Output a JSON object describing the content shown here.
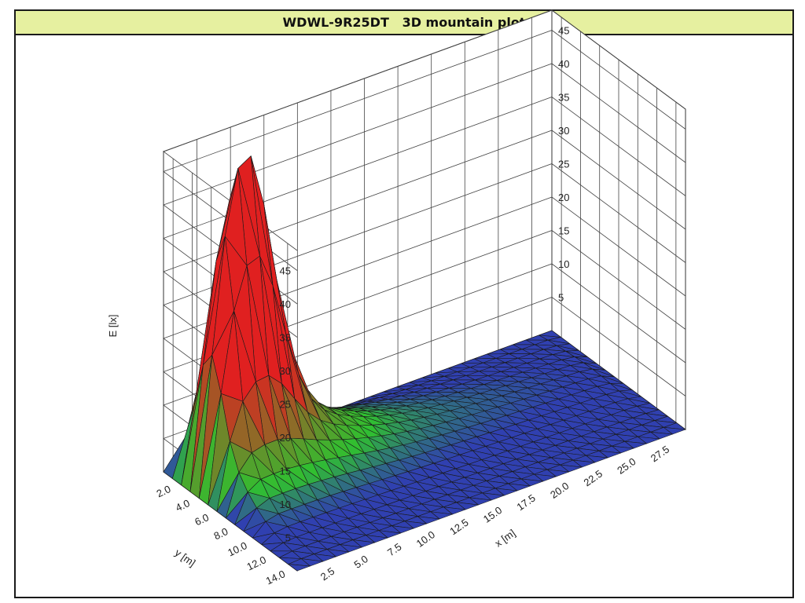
{
  "window": {
    "title": "WDWL-9R25DT   3D mountain plot",
    "title_bar_color": "#e6f0a0"
  },
  "chart_data": {
    "type": "surface",
    "title": "WDWL-9R25DT   3D mountain plot",
    "zlabel": "E [lx]",
    "xlabel": "x [m]",
    "ylabel": "y [m]",
    "z_ticks": [
      "5",
      "10",
      "15",
      "20",
      "25",
      "30",
      "35",
      "40",
      "45"
    ],
    "x_ticks": [
      "2.5",
      "5.0",
      "7.5",
      "10.0",
      "12.5",
      "15.0",
      "17.5",
      "20.0",
      "22.5",
      "25.0",
      "27.5"
    ],
    "y_ticks": [
      "2.0",
      "4.0",
      "6.0",
      "8.0",
      "10.0",
      "12.0",
      "14.0"
    ],
    "xlim": [
      0,
      29
    ],
    "ylim": [
      1,
      15
    ],
    "zlim": [
      0,
      48
    ],
    "peak": {
      "x": 3.5,
      "y": 4.5,
      "E": 47
    },
    "colormap": [
      "#3040b0",
      "#30c030",
      "#e02020"
    ],
    "grid": true
  }
}
